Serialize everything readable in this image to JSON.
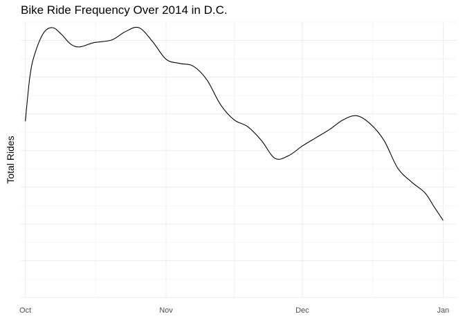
{
  "chart_data": {
    "type": "line",
    "title": "Bike Ride Frequency Over 2014 in D.C.",
    "xlabel": "",
    "ylabel": "Total Rides",
    "xlim": [
      "2014-09-30",
      "2015-01-04"
    ],
    "ylim": [
      0,
      100
    ],
    "grid": true,
    "x_ticks": [
      {
        "date": "2014-10-01",
        "label": "Oct"
      },
      {
        "date": "2014-11-01",
        "label": "Nov"
      },
      {
        "date": "2014-12-01",
        "label": "Dec"
      },
      {
        "date": "2015-01-01",
        "label": "Jan"
      }
    ],
    "y_ticks_shown": false,
    "series": [
      {
        "values": [
          {
            "x": "2014-10-01",
            "y": 64
          },
          {
            "x": "2014-10-02",
            "y": 80
          },
          {
            "x": "2014-10-03",
            "y": 88
          },
          {
            "x": "2014-10-05",
            "y": 96
          },
          {
            "x": "2014-10-07",
            "y": 98
          },
          {
            "x": "2014-10-09",
            "y": 95.5
          },
          {
            "x": "2014-10-11",
            "y": 92
          },
          {
            "x": "2014-10-13",
            "y": 91
          },
          {
            "x": "2014-10-16",
            "y": 92.5
          },
          {
            "x": "2014-10-20",
            "y": 93.5
          },
          {
            "x": "2014-10-23",
            "y": 96.5
          },
          {
            "x": "2014-10-26",
            "y": 98
          },
          {
            "x": "2014-10-29",
            "y": 93
          },
          {
            "x": "2014-11-01",
            "y": 86.5
          },
          {
            "x": "2014-11-04",
            "y": 85
          },
          {
            "x": "2014-11-07",
            "y": 84
          },
          {
            "x": "2014-11-10",
            "y": 79
          },
          {
            "x": "2014-11-13",
            "y": 70
          },
          {
            "x": "2014-11-16",
            "y": 64.5
          },
          {
            "x": "2014-11-19",
            "y": 62
          },
          {
            "x": "2014-11-22",
            "y": 57
          },
          {
            "x": "2014-11-25",
            "y": 50.5
          },
          {
            "x": "2014-11-28",
            "y": 51.5
          },
          {
            "x": "2014-12-01",
            "y": 55
          },
          {
            "x": "2014-12-04",
            "y": 58
          },
          {
            "x": "2014-12-07",
            "y": 61
          },
          {
            "x": "2014-12-10",
            "y": 64.5
          },
          {
            "x": "2014-12-13",
            "y": 66
          },
          {
            "x": "2014-12-16",
            "y": 63
          },
          {
            "x": "2014-12-19",
            "y": 57
          },
          {
            "x": "2014-12-22",
            "y": 47
          },
          {
            "x": "2014-12-25",
            "y": 42
          },
          {
            "x": "2014-12-28",
            "y": 38
          },
          {
            "x": "2014-12-30",
            "y": 33
          },
          {
            "x": "2015-01-01",
            "y": 28
          }
        ]
      }
    ]
  }
}
